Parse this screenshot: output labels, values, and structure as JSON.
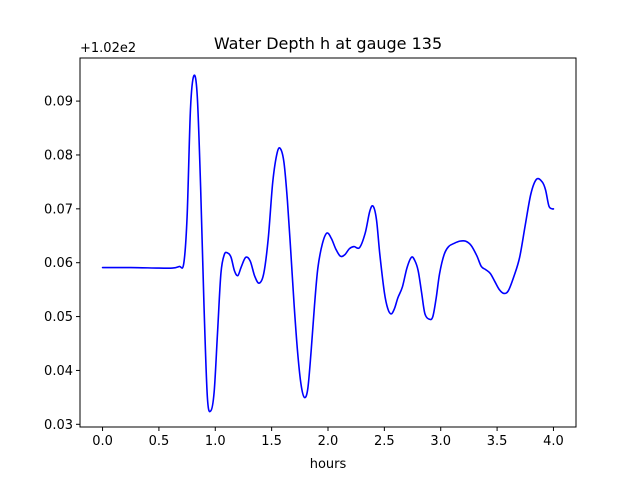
{
  "chart_data": {
    "type": "line",
    "title": "Water Depth h at gauge 135",
    "xlabel": "hours",
    "ylabel": "",
    "offset_label": "+1.02e2",
    "xlim": [
      -0.2,
      4.2
    ],
    "ylim": [
      0.0295,
      0.098
    ],
    "x_ticks": [
      0.0,
      0.5,
      1.0,
      1.5,
      2.0,
      2.5,
      3.0,
      3.5,
      4.0
    ],
    "x_tick_labels": [
      "0.0",
      "0.5",
      "1.0",
      "1.5",
      "2.0",
      "2.5",
      "3.0",
      "3.5",
      "4.0"
    ],
    "y_ticks": [
      0.03,
      0.04,
      0.05,
      0.06,
      0.07,
      0.08,
      0.09
    ],
    "y_tick_labels": [
      "0.03",
      "0.04",
      "0.05",
      "0.06",
      "0.07",
      "0.08",
      "0.09"
    ],
    "grid": false,
    "colors": {
      "line": "#0000ff"
    },
    "series": [
      {
        "x": [
          0.0,
          0.25,
          0.5,
          0.62,
          0.68,
          0.72,
          0.75,
          0.78,
          0.81,
          0.84,
          0.87,
          0.9,
          0.93,
          0.96,
          0.99,
          1.02,
          1.05,
          1.08,
          1.11,
          1.14,
          1.17,
          1.2,
          1.23,
          1.27,
          1.31,
          1.35,
          1.39,
          1.43,
          1.47,
          1.51,
          1.55,
          1.58,
          1.61,
          1.64,
          1.67,
          1.7,
          1.73,
          1.76,
          1.79,
          1.82,
          1.85,
          1.88,
          1.91,
          1.95,
          1.99,
          2.03,
          2.07,
          2.11,
          2.15,
          2.19,
          2.23,
          2.28,
          2.33,
          2.37,
          2.4,
          2.43,
          2.46,
          2.5,
          2.53,
          2.56,
          2.59,
          2.62,
          2.66,
          2.7,
          2.74,
          2.77,
          2.8,
          2.83,
          2.86,
          2.9,
          2.93,
          2.96,
          2.99,
          3.03,
          3.07,
          3.12,
          3.17,
          3.22,
          3.27,
          3.32,
          3.36,
          3.4,
          3.44,
          3.48,
          3.52,
          3.56,
          3.6,
          3.65,
          3.7,
          3.75,
          3.8,
          3.85,
          3.9,
          3.93,
          3.96,
          3.99,
          4.0
        ],
        "y": [
          0.0591,
          0.0591,
          0.059,
          0.059,
          0.0593,
          0.0598,
          0.0685,
          0.0885,
          0.0947,
          0.091,
          0.074,
          0.052,
          0.035,
          0.0325,
          0.036,
          0.047,
          0.058,
          0.0615,
          0.0618,
          0.061,
          0.0585,
          0.0576,
          0.0592,
          0.061,
          0.0603,
          0.0575,
          0.0562,
          0.058,
          0.0645,
          0.075,
          0.0805,
          0.0811,
          0.0785,
          0.0715,
          0.062,
          0.052,
          0.0435,
          0.0375,
          0.035,
          0.0365,
          0.0435,
          0.052,
          0.059,
          0.0635,
          0.0655,
          0.0645,
          0.0625,
          0.0612,
          0.0615,
          0.0626,
          0.063,
          0.0628,
          0.0655,
          0.0695,
          0.0705,
          0.068,
          0.0615,
          0.0545,
          0.0515,
          0.0505,
          0.0515,
          0.0535,
          0.0555,
          0.059,
          0.061,
          0.0604,
          0.0585,
          0.0545,
          0.0505,
          0.0495,
          0.05,
          0.0535,
          0.058,
          0.0615,
          0.063,
          0.0636,
          0.064,
          0.064,
          0.0632,
          0.0613,
          0.0593,
          0.0587,
          0.058,
          0.0565,
          0.055,
          0.0543,
          0.0548,
          0.0575,
          0.061,
          0.067,
          0.0728,
          0.0755,
          0.075,
          0.0735,
          0.0705,
          0.07,
          0.07
        ]
      }
    ]
  }
}
